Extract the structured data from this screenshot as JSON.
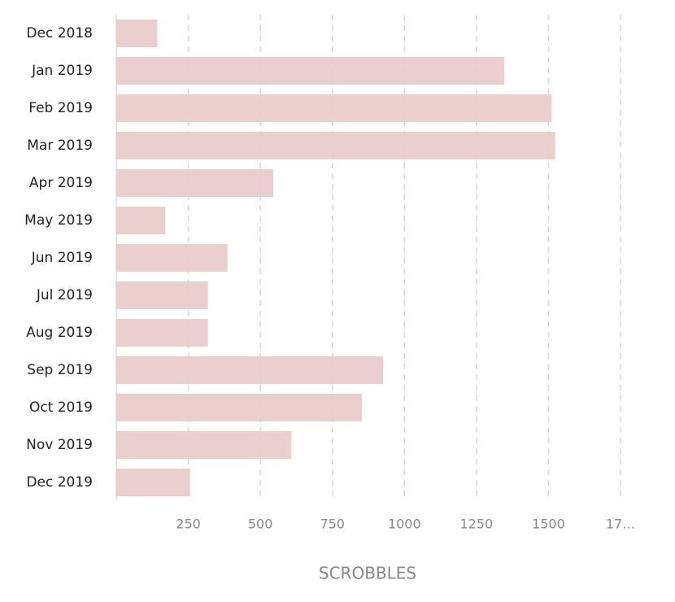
{
  "chart_data": {
    "type": "bar",
    "orientation": "horizontal",
    "categories": [
      "Dec 2018",
      "Jan 2019",
      "Feb 2019",
      "Mar 2019",
      "Apr 2019",
      "May 2019",
      "Jun 2019",
      "Jul 2019",
      "Aug 2019",
      "Sep 2019",
      "Oct 2019",
      "Nov 2019",
      "Dec 2019"
    ],
    "values": [
      142,
      1347,
      1511,
      1523,
      545,
      170,
      386,
      318,
      318,
      926,
      852,
      608,
      256
    ],
    "color": "#e9c9c9",
    "xlim": [
      0,
      1750
    ],
    "xticks": [
      250,
      500,
      750,
      1000,
      1250,
      1500,
      {
        "value": 1750,
        "label": "17…"
      }
    ],
    "xlabel": "SCROBBLES",
    "grid": true
  }
}
